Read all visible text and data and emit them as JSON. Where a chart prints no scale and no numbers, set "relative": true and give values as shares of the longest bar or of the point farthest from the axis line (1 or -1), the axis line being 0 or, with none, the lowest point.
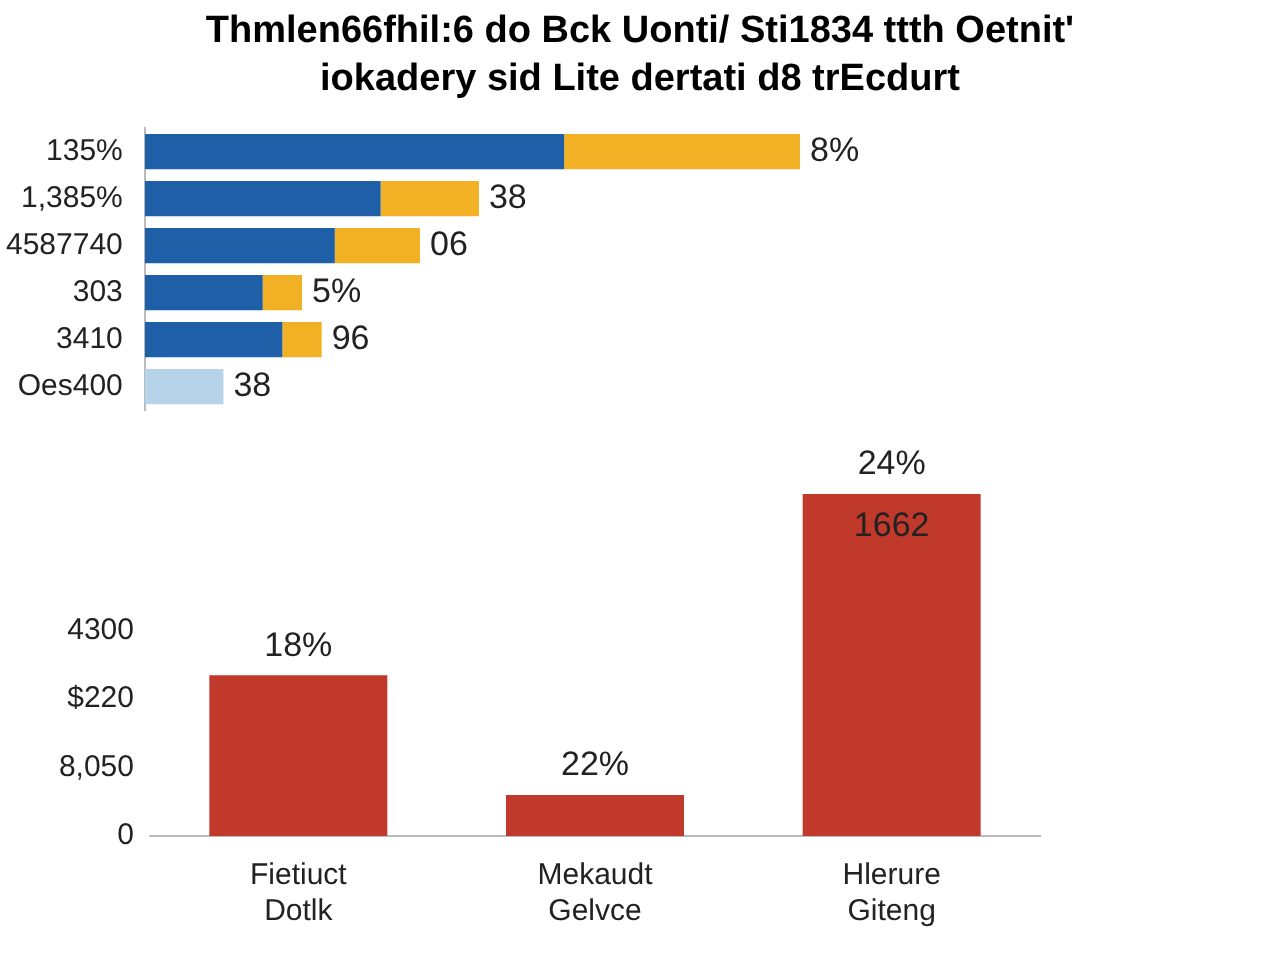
{
  "chart_data": [
    {
      "type": "bar",
      "title": "Thmlen66fhil:6 do Bck Uonti/ Sti1834 ttth Oetnit'\niokadery sid Lite dertati d8 trEcdurt",
      "orientation": "horizontal",
      "stacked": true,
      "relative": true,
      "categories": [
        "135%",
        "1,385%",
        "4587740",
        "303",
        "3410",
        "Oes400"
      ],
      "series": [
        {
          "colors": [
            "#1f5fa8",
            "#1f5fa8",
            "#1f5fa8",
            "#1f5fa8",
            "#1f5fa8",
            "#b7d3ea"
          ],
          "values": [
            0.64,
            0.36,
            0.29,
            0.18,
            0.21,
            0.12
          ]
        },
        {
          "color": "#f2b124",
          "values": [
            0.36,
            0.15,
            0.13,
            0.06,
            0.06,
            0
          ]
        }
      ],
      "annotations": [
        {
          "text": "8%",
          "x": 1,
          "y": "135%"
        },
        {
          "text": "38",
          "x": 0.51,
          "y": "1,385%"
        },
        {
          "text": "06",
          "x": 0.42,
          "y": "4587740"
        },
        {
          "text": "5%",
          "x": 0.24,
          "y": "303"
        },
        {
          "text": "96",
          "x": 0.27,
          "y": "3410"
        },
        {
          "text": "38",
          "x": 0.12,
          "y": "Oes400"
        }
      ]
    },
    {
      "type": "bar",
      "relative": true,
      "categories": [
        "Fietiuct\nDotlk",
        "Mekaudt\nGelvce",
        "Hlerure\nGiteng"
      ],
      "values": [
        0.47,
        0.12,
        1
      ],
      "color": "#c0392b",
      "annotations": [
        "0",
        "8,050",
        "$220",
        "4300",
        {
          "text": "18%",
          "x": "Fietiuct\nDotlk",
          "y": 0.47
        },
        {
          "text": "22%",
          "x": "Mekaudt\nGelvce",
          "y": 0.12
        },
        {
          "text": "24%",
          "x": "Hlerure\nGiteng",
          "y": 1
        },
        {
          "text": "1662",
          "x": "Hlerure\nGiteng",
          "y": 1
        }
      ]
    }
  ]
}
